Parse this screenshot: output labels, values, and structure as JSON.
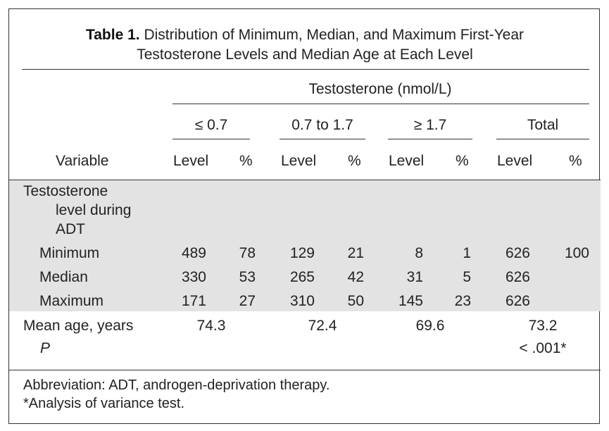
{
  "title": {
    "label": "Table 1.",
    "line1": "Distribution of Minimum, Median, and Maximum First-Year",
    "line2": "Testosterone Levels and Median Age at Each Level"
  },
  "header": {
    "group": "Testosterone (nmol/L)",
    "bands": [
      "≤ 0.7",
      "0.7 to 1.7",
      "≥ 1.7",
      "Total"
    ],
    "variable": "Variable",
    "level": "Level",
    "pct": "%"
  },
  "section": {
    "line1": "Testosterone",
    "line2": "level during",
    "line3": "ADT"
  },
  "rows": [
    {
      "label": "Minimum",
      "cells": [
        "489",
        "78",
        "129",
        "21",
        "8",
        "1",
        "626",
        "100"
      ]
    },
    {
      "label": "Median",
      "cells": [
        "330",
        "53",
        "265",
        "42",
        "31",
        "5",
        "626",
        ""
      ]
    },
    {
      "label": "Maximum",
      "cells": [
        "171",
        "27",
        "310",
        "50",
        "145",
        "23",
        "626",
        ""
      ]
    }
  ],
  "age": {
    "label": "Mean age, years",
    "values": [
      "74.3",
      "72.4",
      "69.6",
      "73.2"
    ]
  },
  "p": {
    "label": "P",
    "value": "< .001*"
  },
  "footnotes": {
    "abbrev": "Abbreviation: ADT, androgen-deprivation therapy.",
    "note": "*Analysis of variance test."
  }
}
